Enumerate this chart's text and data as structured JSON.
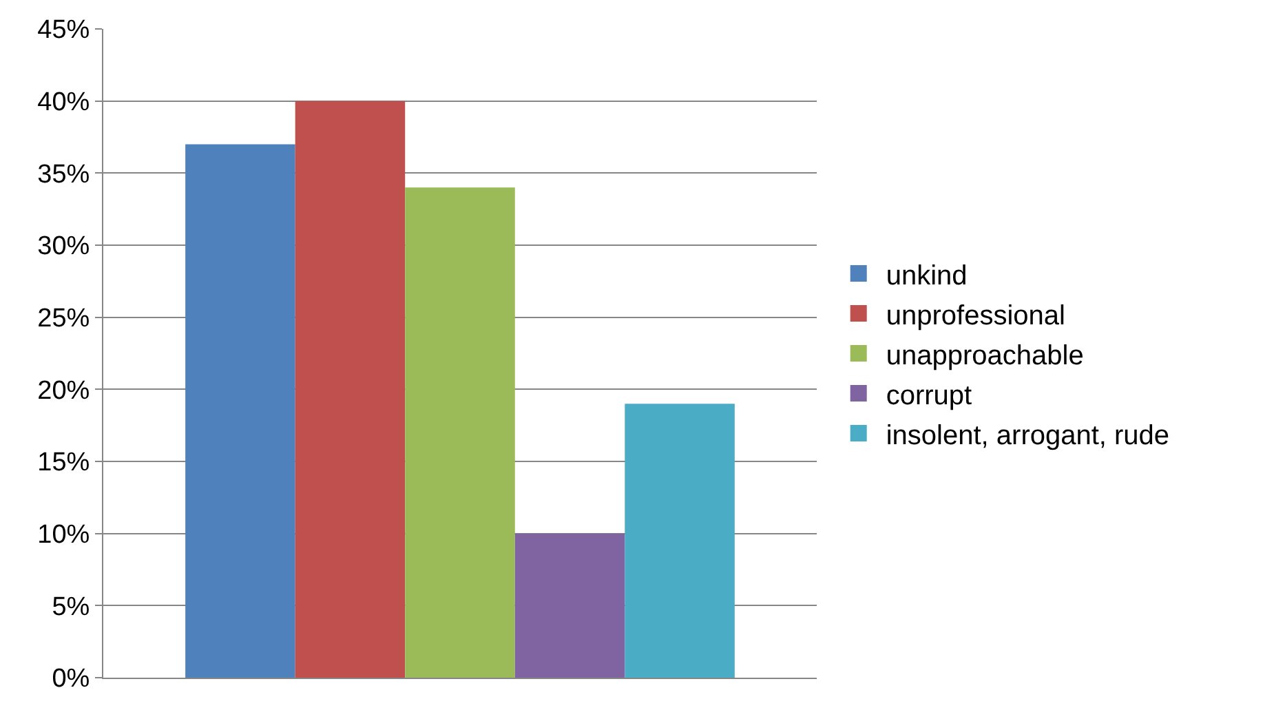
{
  "chart_data": {
    "type": "bar",
    "categories": [
      null
    ],
    "series": [
      {
        "name": "unkind",
        "color": "#4f81bd",
        "values": [
          37
        ]
      },
      {
        "name": "unprofessional",
        "color": "#c0504d",
        "values": [
          40
        ]
      },
      {
        "name": "unapproachable",
        "color": "#9bbb59",
        "values": [
          34
        ]
      },
      {
        "name": "corrupt",
        "color": "#8064a2",
        "values": [
          10
        ]
      },
      {
        "name": "insolent, arrogant, rude",
        "color": "#4bacc6",
        "values": [
          19
        ]
      }
    ],
    "ylim": [
      0,
      45
    ],
    "yticks": [
      {
        "value": 0,
        "label": "0%"
      },
      {
        "value": 5,
        "label": "5%"
      },
      {
        "value": 10,
        "label": "10%"
      },
      {
        "value": 15,
        "label": "15%"
      },
      {
        "value": 20,
        "label": "20%"
      },
      {
        "value": 25,
        "label": "25%"
      },
      {
        "value": 30,
        "label": "30%"
      },
      {
        "value": 35,
        "label": "35%"
      },
      {
        "value": 40,
        "label": "40%"
      },
      {
        "value": 45,
        "label": "45%"
      }
    ],
    "grid": "y",
    "legend": "right"
  }
}
